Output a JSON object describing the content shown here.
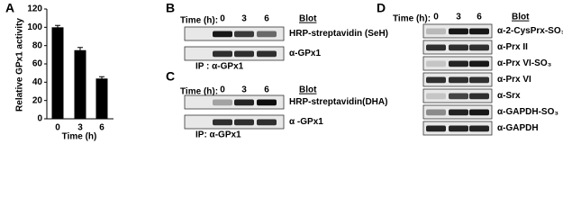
{
  "chart_data": {
    "type": "bar",
    "label": "A",
    "ylabel": "Relative GPx1 activity",
    "xlabel": "Time (h)",
    "categories": [
      "0",
      "3",
      "6"
    ],
    "values": [
      100,
      75,
      44
    ],
    "errors": [
      2,
      3,
      2
    ],
    "color": "#000000",
    "ylim": [
      0,
      120
    ],
    "yticks": [
      0,
      20,
      40,
      60,
      80,
      100,
      120
    ]
  },
  "blot_b": {
    "label": "B",
    "time_label": "Time (h):",
    "times": [
      "0",
      "3",
      "6"
    ],
    "blot_header": "Blot",
    "rows": [
      "HRP-streptavidin (SeH)",
      "α-GPx1"
    ],
    "footer": "IP : α-GPx1"
  },
  "blot_c": {
    "label": "C",
    "time_label": "Time (h):",
    "times": [
      "0",
      "3",
      "6"
    ],
    "blot_header": "Blot",
    "rows": [
      "HRP-streptavidin(DHA)",
      "α -GPx1"
    ],
    "footer": "IP: α-GPx1"
  },
  "blot_d": {
    "label": "D",
    "time_label": "Time (h):",
    "times": [
      "0",
      "3",
      "6"
    ],
    "blot_header": "Blot",
    "rows": [
      "α-2-CysPrx-SO₃",
      "α-Prx II",
      "α-Prx VI-SO₃",
      "α-Prx VI",
      "α-Srx",
      "α-GAPDH-SO₃",
      "α-GAPDH"
    ]
  }
}
